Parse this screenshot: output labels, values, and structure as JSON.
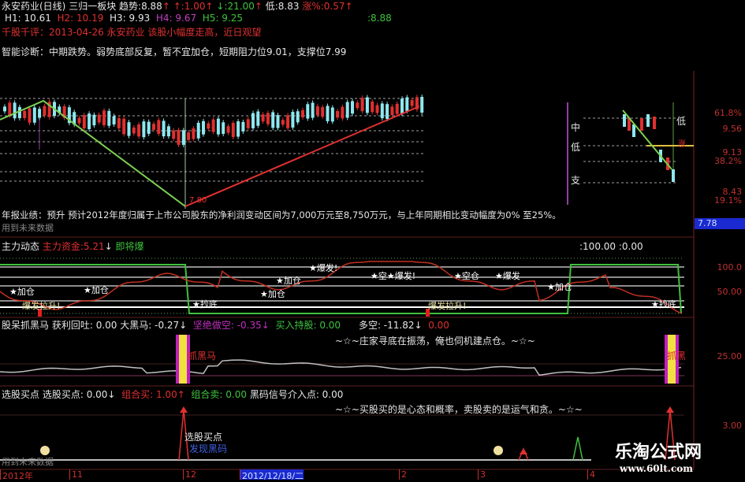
{
  "header": {
    "stock": "永安药业(日线)",
    "sector": "三归一板块",
    "trend_label": "趋势:",
    "trend": "8.88",
    "up_label": "↑:",
    "up": "1.00",
    "down_label": "↓:",
    "down": "21.00",
    "low_label": "低:",
    "low": "8.83",
    "chg_label": "涨%:",
    "chg": "0.57",
    "h1": "H1: 10.61",
    "h2": "H2: 10.19",
    "h3": "H3: 9.93",
    "h4": "H4: 9.67",
    "h5": "H5: 9.25",
    "right_val": ":8.88"
  },
  "comment": "千股千评：2013-04-26 永安药业 该股小幅度走高，近日观望",
  "diagnosis": "智能诊断：中期跌势。弱势底部反复，暂不宜加仓，短期阻力位9.01，支撑位7.99",
  "main_chart": {
    "low_marker": "7.80",
    "labels": {
      "mid": "中",
      "low": "低",
      "sup": "支",
      "low2": "低",
      "rise": "涨"
    }
  },
  "right_axis": {
    "p618": "61.8%",
    "v956": "9.56",
    "v913": "9.13",
    "p382": "38.2%",
    "v843": "8.43",
    "p191": "19.1%",
    "current": "7.78"
  },
  "annual": "年报业绩：预升 预计2012年度归属于上市公司股东的净利润变动区间为7,000万元至8,750万元，与上年同期相比变动幅度为0% 至25%。",
  "future_note": "用到未来数据",
  "panel1": {
    "title": "主力动态",
    "fund_label": "主力资金:",
    "fund": "5.21",
    "arrow": "↓",
    "signal": "即将爆",
    "readout": ":100.00 :0.00",
    "ax100": "100.0",
    "ax50": "50.00",
    "marks": [
      "★加仓",
      "★加仓",
      "爆发拉升!",
      "★抄底",
      "★加仓",
      "★加仓",
      "★爆发!",
      "★空★爆发!",
      "★空仓",
      "★爆发",
      "★加仓",
      "爆发拉升!",
      "★抄底"
    ]
  },
  "panel2": {
    "title": "股呆抓黑马",
    "profit": "获利回吐: 0.00",
    "horse": "大黑马: -0.27↓",
    "short": "坚绝做空: -0.35↓",
    "hold": "买入持股: 0.00",
    "ls": "多空: -11.82↓",
    "val": "0.00",
    "motto": "~☆~庄家寻底在振荡，俺也伺机建点仓。~☆~",
    "tag": "抓黑马",
    "tag2": "抓黑",
    "ax25": "25.00"
  },
  "panel3": {
    "title": "选股买点",
    "buy": "选股买点: 0.00↓",
    "combo_buy": "组合买: 1.00↑",
    "combo_sell": "组合卖: 0.00",
    "code": "黑码信号介入点: 0.00",
    "motto": "~☆~买股买的是心态和概率，卖股卖的是运气和贪。~☆~",
    "pick": "选股买点",
    "found": "发现黑码",
    "ax3": "3.00"
  },
  "dates": [
    "2012年",
    "11",
    "12",
    "2012/12/18/二",
    "2",
    "3",
    "4"
  ],
  "watermark": {
    "name": "乐淘公式网",
    "url": "www.60lt.com"
  },
  "colors": {
    "up": "#e03030",
    "down": "#8ee8f0",
    "support_line": "#e03030",
    "resist_line": "#7cd050",
    "bg": "#000000"
  }
}
